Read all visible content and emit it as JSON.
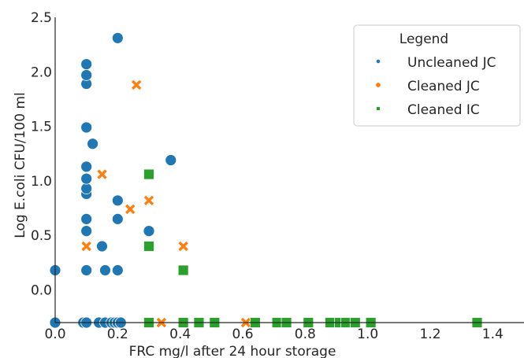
{
  "chart_data": {
    "type": "scatter",
    "xlabel": "FRC mg/l after 24 hour storage",
    "ylabel": "Log E.coli CFU/100 ml",
    "xlim": [
      0.0,
      1.5
    ],
    "ylim": [
      -0.3,
      2.5
    ],
    "xticks": [
      "0.0",
      "0.2",
      "0.4",
      "0.6",
      "0.8",
      "1.0",
      "1.2",
      "1.4"
    ],
    "yticks": [
      "0.0",
      "0.5",
      "1.0",
      "1.5",
      "2.0",
      "2.5"
    ],
    "grid": false,
    "legend": {
      "title": "Legend",
      "position": "top-right"
    },
    "series": [
      {
        "name": "Uncleaned JC",
        "marker": "circle",
        "color": "#1f77b4",
        "points": [
          [
            0.0,
            0.18
          ],
          [
            0.0,
            -0.3
          ],
          [
            0.09,
            -0.3
          ],
          [
            0.1,
            -0.3
          ],
          [
            0.1,
            0.18
          ],
          [
            0.1,
            0.54
          ],
          [
            0.1,
            0.65
          ],
          [
            0.1,
            0.88
          ],
          [
            0.1,
            0.93
          ],
          [
            0.1,
            1.02
          ],
          [
            0.1,
            1.13
          ],
          [
            0.1,
            1.49
          ],
          [
            0.1,
            1.89
          ],
          [
            0.1,
            1.97
          ],
          [
            0.1,
            2.07
          ],
          [
            0.12,
            1.34
          ],
          [
            0.14,
            -0.3
          ],
          [
            0.15,
            0.4
          ],
          [
            0.16,
            0.18
          ],
          [
            0.16,
            -0.3
          ],
          [
            0.18,
            -0.3
          ],
          [
            0.19,
            -0.3
          ],
          [
            0.2,
            -0.3
          ],
          [
            0.2,
            0.18
          ],
          [
            0.2,
            0.65
          ],
          [
            0.2,
            0.82
          ],
          [
            0.2,
            2.31
          ],
          [
            0.21,
            -0.3
          ],
          [
            0.3,
            0.54
          ],
          [
            0.37,
            1.19
          ]
        ]
      },
      {
        "name": "Cleaned JC",
        "marker": "x",
        "color": "#ff7f0e",
        "points": [
          [
            0.1,
            0.4
          ],
          [
            0.15,
            1.06
          ],
          [
            0.24,
            0.74
          ],
          [
            0.26,
            1.88
          ],
          [
            0.3,
            0.82
          ],
          [
            0.34,
            -0.3
          ],
          [
            0.41,
            0.4
          ],
          [
            0.61,
            -0.3
          ]
        ]
      },
      {
        "name": "Cleaned IC",
        "marker": "square",
        "color": "#2ca02c",
        "points": [
          [
            0.3,
            1.06
          ],
          [
            0.3,
            0.4
          ],
          [
            0.3,
            -0.3
          ],
          [
            0.41,
            0.18
          ],
          [
            0.41,
            -0.3
          ],
          [
            0.46,
            -0.3
          ],
          [
            0.51,
            -0.3
          ],
          [
            0.64,
            -0.3
          ],
          [
            0.71,
            -0.3
          ],
          [
            0.74,
            -0.3
          ],
          [
            0.81,
            -0.3
          ],
          [
            0.88,
            -0.3
          ],
          [
            0.91,
            -0.3
          ],
          [
            0.93,
            -0.3
          ],
          [
            0.96,
            -0.3
          ],
          [
            1.01,
            -0.3
          ],
          [
            1.35,
            -0.3
          ]
        ]
      }
    ]
  }
}
